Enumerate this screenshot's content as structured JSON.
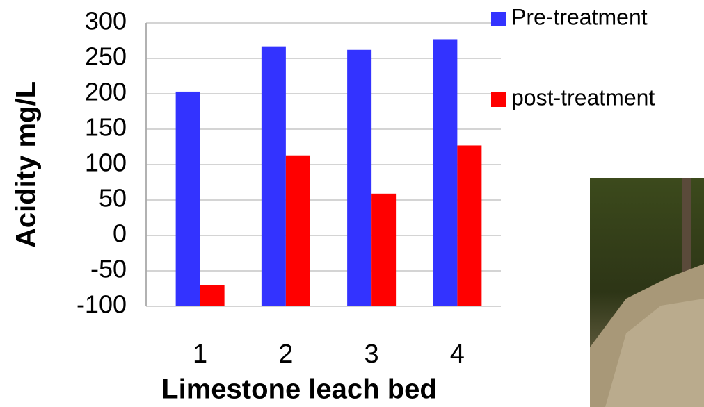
{
  "chart_data": {
    "type": "bar",
    "categories": [
      "1",
      "2",
      "3",
      "4"
    ],
    "series": [
      {
        "name": "Pre-treatment",
        "color": "#3333ff",
        "values": [
          203,
          267,
          262,
          277
        ]
      },
      {
        "name": "post-treatment",
        "color": "#ff0000",
        "values": [
          -70,
          113,
          59,
          127
        ]
      }
    ],
    "ylim": [
      -100,
      300
    ],
    "yticks": [
      -100,
      -50,
      0,
      50,
      100,
      150,
      200,
      250,
      300
    ],
    "grid": true,
    "x_label": "Limestone leach bed",
    "y_label": "Acidity mg/L",
    "legend": "top-right"
  }
}
